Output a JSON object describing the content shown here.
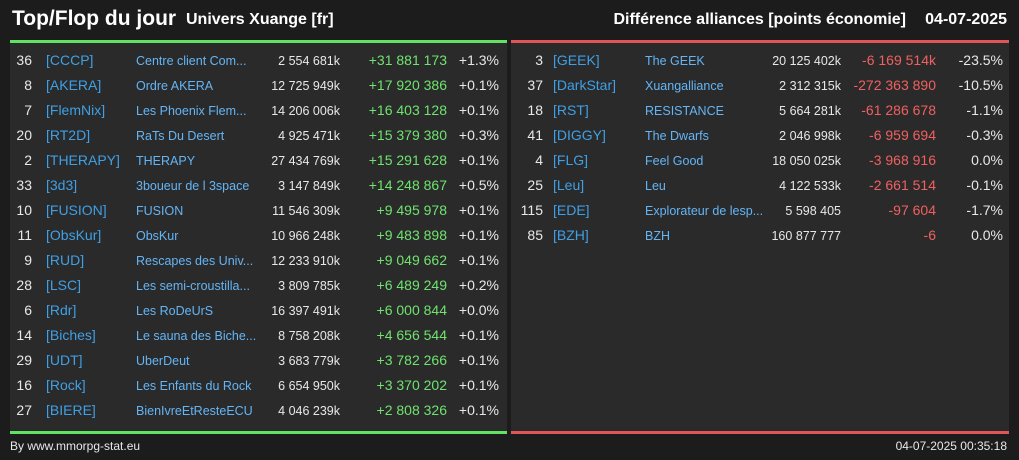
{
  "header": {
    "title": "Top/Flop du jour",
    "universe": "Univers Xuange [fr]",
    "subtitle": "Différence alliances [points économie]",
    "date": "04-07-2025"
  },
  "colors": {
    "top_accent": "#62e262",
    "flop_accent": "#e05555",
    "tag_color": "#3fa0e6",
    "positive": "#6fe36f",
    "negative": "#f06060"
  },
  "top": [
    {
      "rank": "36",
      "tag": "[CCCP]",
      "name": "Centre client Com...",
      "points": "2 554 681k",
      "diff": "+31 881 173",
      "pct": "+1.3%"
    },
    {
      "rank": "8",
      "tag": "[AKERA]",
      "name": "Ordre AKERA",
      "points": "12 725 949k",
      "diff": "+17 920 386",
      "pct": "+0.1%"
    },
    {
      "rank": "7",
      "tag": "[FlemNix]",
      "name": "Les Phoenix Flem...",
      "points": "14 206 006k",
      "diff": "+16 403 128",
      "pct": "+0.1%"
    },
    {
      "rank": "20",
      "tag": "[RT2D]",
      "name": "RaTs Du Desert",
      "points": "4 925 471k",
      "diff": "+15 379 380",
      "pct": "+0.3%"
    },
    {
      "rank": "2",
      "tag": "[THERAPY]",
      "name": "THERAPY",
      "points": "27 434 769k",
      "diff": "+15 291 628",
      "pct": "+0.1%"
    },
    {
      "rank": "33",
      "tag": "[3d3]",
      "name": "3boueur de l 3space",
      "points": "3 147 849k",
      "diff": "+14 248 867",
      "pct": "+0.5%"
    },
    {
      "rank": "10",
      "tag": "[FUSION]",
      "name": "FUSION",
      "points": "11 546 309k",
      "diff": "+9 495 978",
      "pct": "+0.1%"
    },
    {
      "rank": "11",
      "tag": "[ObsKur]",
      "name": "ObsKur",
      "points": "10 966 248k",
      "diff": "+9 483 898",
      "pct": "+0.1%"
    },
    {
      "rank": "9",
      "tag": "[RUD]",
      "name": "Rescapes des Univ...",
      "points": "12 233 910k",
      "diff": "+9 049 662",
      "pct": "+0.1%"
    },
    {
      "rank": "28",
      "tag": "[LSC]",
      "name": "Les semi-croustilla...",
      "points": "3 809 785k",
      "diff": "+6 489 249",
      "pct": "+0.2%"
    },
    {
      "rank": "6",
      "tag": "[Rdr]",
      "name": "Les RoDeUrS",
      "points": "16 397 491k",
      "diff": "+6 000 844",
      "pct": "+0.0%"
    },
    {
      "rank": "14",
      "tag": "[Biches]",
      "name": "Le sauna des Biche...",
      "points": "8 758 208k",
      "diff": "+4 656 544",
      "pct": "+0.1%"
    },
    {
      "rank": "29",
      "tag": "[UDT]",
      "name": "UberDeut",
      "points": "3 683 779k",
      "diff": "+3 782 266",
      "pct": "+0.1%"
    },
    {
      "rank": "16",
      "tag": "[Rock]",
      "name": "Les Enfants du Rock",
      "points": "6 654 950k",
      "diff": "+3 370 202",
      "pct": "+0.1%"
    },
    {
      "rank": "27",
      "tag": "[BIERE]",
      "name": "BienIvreEtResteECU",
      "points": "4 046 239k",
      "diff": "+2 808 326",
      "pct": "+0.1%"
    }
  ],
  "flop": [
    {
      "rank": "3",
      "tag": "[GEEK]",
      "name": "The GEEK",
      "points": "20 125 402k",
      "diff": "-6 169 514k",
      "pct": "-23.5%"
    },
    {
      "rank": "37",
      "tag": "[DarkStar]",
      "name": "Xuangalliance",
      "points": "2 312 315k",
      "diff": "-272 363 890",
      "pct": "-10.5%"
    },
    {
      "rank": "18",
      "tag": "[RST]",
      "name": "RESISTANCE",
      "points": "5 664 281k",
      "diff": "-61 286 678",
      "pct": "-1.1%"
    },
    {
      "rank": "41",
      "tag": "[DIGGY]",
      "name": "The Dwarfs",
      "points": "2 046 998k",
      "diff": "-6 959 694",
      "pct": "-0.3%"
    },
    {
      "rank": "4",
      "tag": "[FLG]",
      "name": "Feel Good",
      "points": "18 050 025k",
      "diff": "-3 968 916",
      "pct": "0.0%"
    },
    {
      "rank": "25",
      "tag": "[Leu]",
      "name": "Leu",
      "points": "4 122 533k",
      "diff": "-2 661 514",
      "pct": "-0.1%"
    },
    {
      "rank": "115",
      "tag": "[EDE]",
      "name": "Explorateur de lesp...",
      "points": "5 598 405",
      "diff": "-97 604",
      "pct": "-1.7%"
    },
    {
      "rank": "85",
      "tag": "[BZH]",
      "name": "BZH",
      "points": "160 877 777",
      "diff": "-6",
      "pct": "0.0%"
    }
  ],
  "footer": {
    "source": "By www.mmorpg-stat.eu",
    "timestamp": "04-07-2025 00:35:18"
  }
}
